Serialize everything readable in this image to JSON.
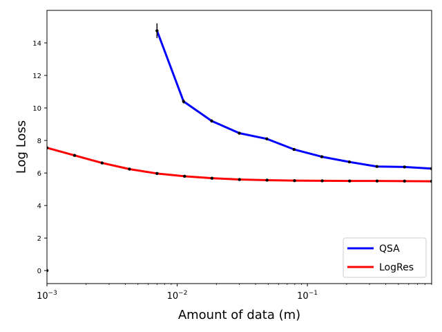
{
  "chart_data": {
    "type": "line",
    "title": "",
    "xlabel": "Amount of data (m)",
    "ylabel": "Log Loss",
    "xscale": "log",
    "xlim": [
      0.001,
      0.9
    ],
    "ylim": [
      -0.8,
      16.0
    ],
    "x_ticks": [
      {
        "value": 0.001,
        "base": "10",
        "exp": "−3"
      },
      {
        "value": 0.01,
        "base": "10",
        "exp": "−2"
      },
      {
        "value": 0.1,
        "base": "10",
        "exp": "−1"
      }
    ],
    "y_ticks": [
      0,
      2,
      4,
      6,
      8,
      10,
      12,
      14
    ],
    "grid": false,
    "legend": "lower-right",
    "series": [
      {
        "name": "QSA",
        "color": "#0000ff",
        "x": [
          0.007,
          0.0112,
          0.0184,
          0.03,
          0.0488,
          0.079,
          0.129,
          0.21,
          0.342,
          0.557,
          0.9
        ],
        "y": [
          14.75,
          10.4,
          9.2,
          8.45,
          8.1,
          7.45,
          7.0,
          6.68,
          6.4,
          6.37,
          6.27
        ],
        "err": [
          0.45,
          0.12,
          0.1,
          0.07,
          0.07,
          0.06,
          0.05,
          0.05,
          0.05,
          0.04,
          0.04
        ]
      },
      {
        "name": "LogRes",
        "color": "#ff0000",
        "x": [
          0.001,
          0.00163,
          0.00265,
          0.0043,
          0.007,
          0.0114,
          0.0185,
          0.0301,
          0.049,
          0.0797,
          0.13,
          0.211,
          0.343,
          0.557,
          0.9
        ],
        "y": [
          7.55,
          7.08,
          6.62,
          6.24,
          5.97,
          5.8,
          5.68,
          5.6,
          5.56,
          5.53,
          5.52,
          5.51,
          5.51,
          5.5,
          5.49
        ]
      },
      {
        "name": "",
        "color": "#000000",
        "x": [
          0.001
        ],
        "y": [
          0.0
        ]
      }
    ]
  }
}
